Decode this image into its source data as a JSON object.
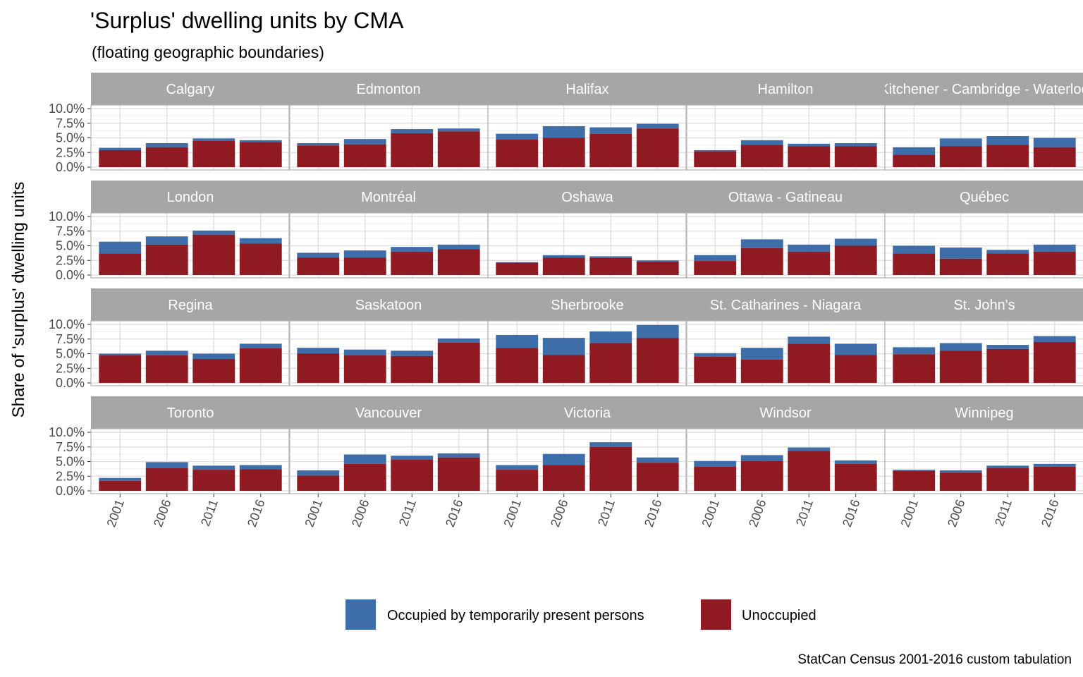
{
  "chart_data": {
    "type": "bar",
    "stacked": true,
    "title": "'Surplus' dwelling units by CMA",
    "subtitle": "(floating geographic boundaries)",
    "ylabel": "Share of 'surplus' dwelling units",
    "xlabel": "",
    "caption": "StatCan Census 2001-2016 custom tabulation",
    "x": [
      "2001",
      "2006",
      "2011",
      "2016"
    ],
    "ylim": [
      0,
      0.1
    ],
    "yticks": [
      "0.0%",
      "2.5%",
      "5.0%",
      "7.5%",
      "10.0%"
    ],
    "ytick_values": [
      0,
      0.025,
      0.05,
      0.075,
      0.1
    ],
    "grid": true,
    "legend_position": "bottom",
    "series_names": [
      "Occupied by temporarily present persons",
      "Unoccupied"
    ],
    "colors": {
      "temporary": "#3d6ea9",
      "unoccupied": "#901a21",
      "strip": "#a6a6a6",
      "panel_border": "#b3b3b3",
      "grid_major": "#dcdcdc",
      "grid_minor": "#eeeeee"
    },
    "panels": [
      {
        "name": "Calgary",
        "strip_label": "Calgary",
        "unoccupied": [
          0.029,
          0.034,
          0.045,
          0.043
        ],
        "temporary": [
          0.004,
          0.007,
          0.004,
          0.003
        ]
      },
      {
        "name": "Edmonton",
        "strip_label": "Edmonton",
        "unoccupied": [
          0.037,
          0.039,
          0.058,
          0.061
        ],
        "temporary": [
          0.004,
          0.009,
          0.007,
          0.005
        ]
      },
      {
        "name": "Halifax",
        "strip_label": "Halifax",
        "unoccupied": [
          0.047,
          0.05,
          0.057,
          0.066
        ],
        "temporary": [
          0.01,
          0.02,
          0.011,
          0.008
        ]
      },
      {
        "name": "Hamilton",
        "strip_label": "Hamilton",
        "unoccupied": [
          0.027,
          0.038,
          0.036,
          0.036
        ],
        "temporary": [
          0.002,
          0.008,
          0.004,
          0.005
        ]
      },
      {
        "name": "Kitchener - Cambridge - Waterloo",
        "strip_label": "Kitchener - Cambridge - Waterloo",
        "unoccupied": [
          0.021,
          0.036,
          0.038,
          0.034
        ],
        "temporary": [
          0.013,
          0.013,
          0.015,
          0.016
        ]
      },
      {
        "name": "London",
        "strip_label": "London",
        "unoccupied": [
          0.037,
          0.052,
          0.069,
          0.054
        ],
        "temporary": [
          0.02,
          0.014,
          0.007,
          0.009
        ]
      },
      {
        "name": "Montréal",
        "strip_label": "Montréal",
        "unoccupied": [
          0.03,
          0.03,
          0.04,
          0.044
        ],
        "temporary": [
          0.008,
          0.012,
          0.008,
          0.008
        ]
      },
      {
        "name": "Oshawa",
        "strip_label": "Oshawa",
        "unoccupied": [
          0.021,
          0.03,
          0.029,
          0.023
        ],
        "temporary": [
          0.001,
          0.004,
          0.003,
          0.002
        ]
      },
      {
        "name": "Ottawa - Gatineau",
        "strip_label": "Ottawa - Gatineau",
        "unoccupied": [
          0.024,
          0.046,
          0.04,
          0.05
        ],
        "temporary": [
          0.01,
          0.015,
          0.012,
          0.012
        ]
      },
      {
        "name": "Québec",
        "strip_label": "Québec",
        "unoccupied": [
          0.037,
          0.028,
          0.037,
          0.04
        ],
        "temporary": [
          0.013,
          0.019,
          0.006,
          0.012
        ]
      },
      {
        "name": "Regina",
        "strip_label": "Regina",
        "unoccupied": [
          0.047,
          0.047,
          0.041,
          0.059
        ],
        "temporary": [
          0.003,
          0.008,
          0.009,
          0.008
        ]
      },
      {
        "name": "Saskatoon",
        "strip_label": "Saskatoon",
        "unoccupied": [
          0.05,
          0.047,
          0.046,
          0.069
        ],
        "temporary": [
          0.01,
          0.01,
          0.009,
          0.007
        ]
      },
      {
        "name": "Sherbrooke",
        "strip_label": "Sherbrooke",
        "unoccupied": [
          0.06,
          0.048,
          0.068,
          0.077
        ],
        "temporary": [
          0.022,
          0.029,
          0.02,
          0.022
        ]
      },
      {
        "name": "St. Catharines - Niagara",
        "strip_label": "St. Catharines - Niagara",
        "unoccupied": [
          0.045,
          0.04,
          0.067,
          0.048
        ],
        "temporary": [
          0.006,
          0.02,
          0.012,
          0.019
        ]
      },
      {
        "name": "St. John's",
        "strip_label": "St. John's",
        "unoccupied": [
          0.049,
          0.055,
          0.058,
          0.07
        ],
        "temporary": [
          0.012,
          0.013,
          0.007,
          0.01
        ]
      },
      {
        "name": "Toronto",
        "strip_label": "Toronto",
        "unoccupied": [
          0.017,
          0.039,
          0.036,
          0.037
        ],
        "temporary": [
          0.005,
          0.01,
          0.007,
          0.007
        ]
      },
      {
        "name": "Vancouver",
        "strip_label": "Vancouver",
        "unoccupied": [
          0.026,
          0.046,
          0.053,
          0.057
        ],
        "temporary": [
          0.009,
          0.016,
          0.007,
          0.007
        ]
      },
      {
        "name": "Victoria",
        "strip_label": "Victoria",
        "unoccupied": [
          0.036,
          0.044,
          0.075,
          0.048
        ],
        "temporary": [
          0.008,
          0.019,
          0.008,
          0.009
        ]
      },
      {
        "name": "Windsor",
        "strip_label": "Windsor",
        "unoccupied": [
          0.041,
          0.051,
          0.068,
          0.046
        ],
        "temporary": [
          0.01,
          0.01,
          0.006,
          0.006
        ]
      },
      {
        "name": "Winnipeg",
        "strip_label": "Winnipeg",
        "unoccupied": [
          0.034,
          0.031,
          0.039,
          0.041
        ],
        "temporary": [
          0.002,
          0.004,
          0.004,
          0.005
        ]
      }
    ]
  }
}
